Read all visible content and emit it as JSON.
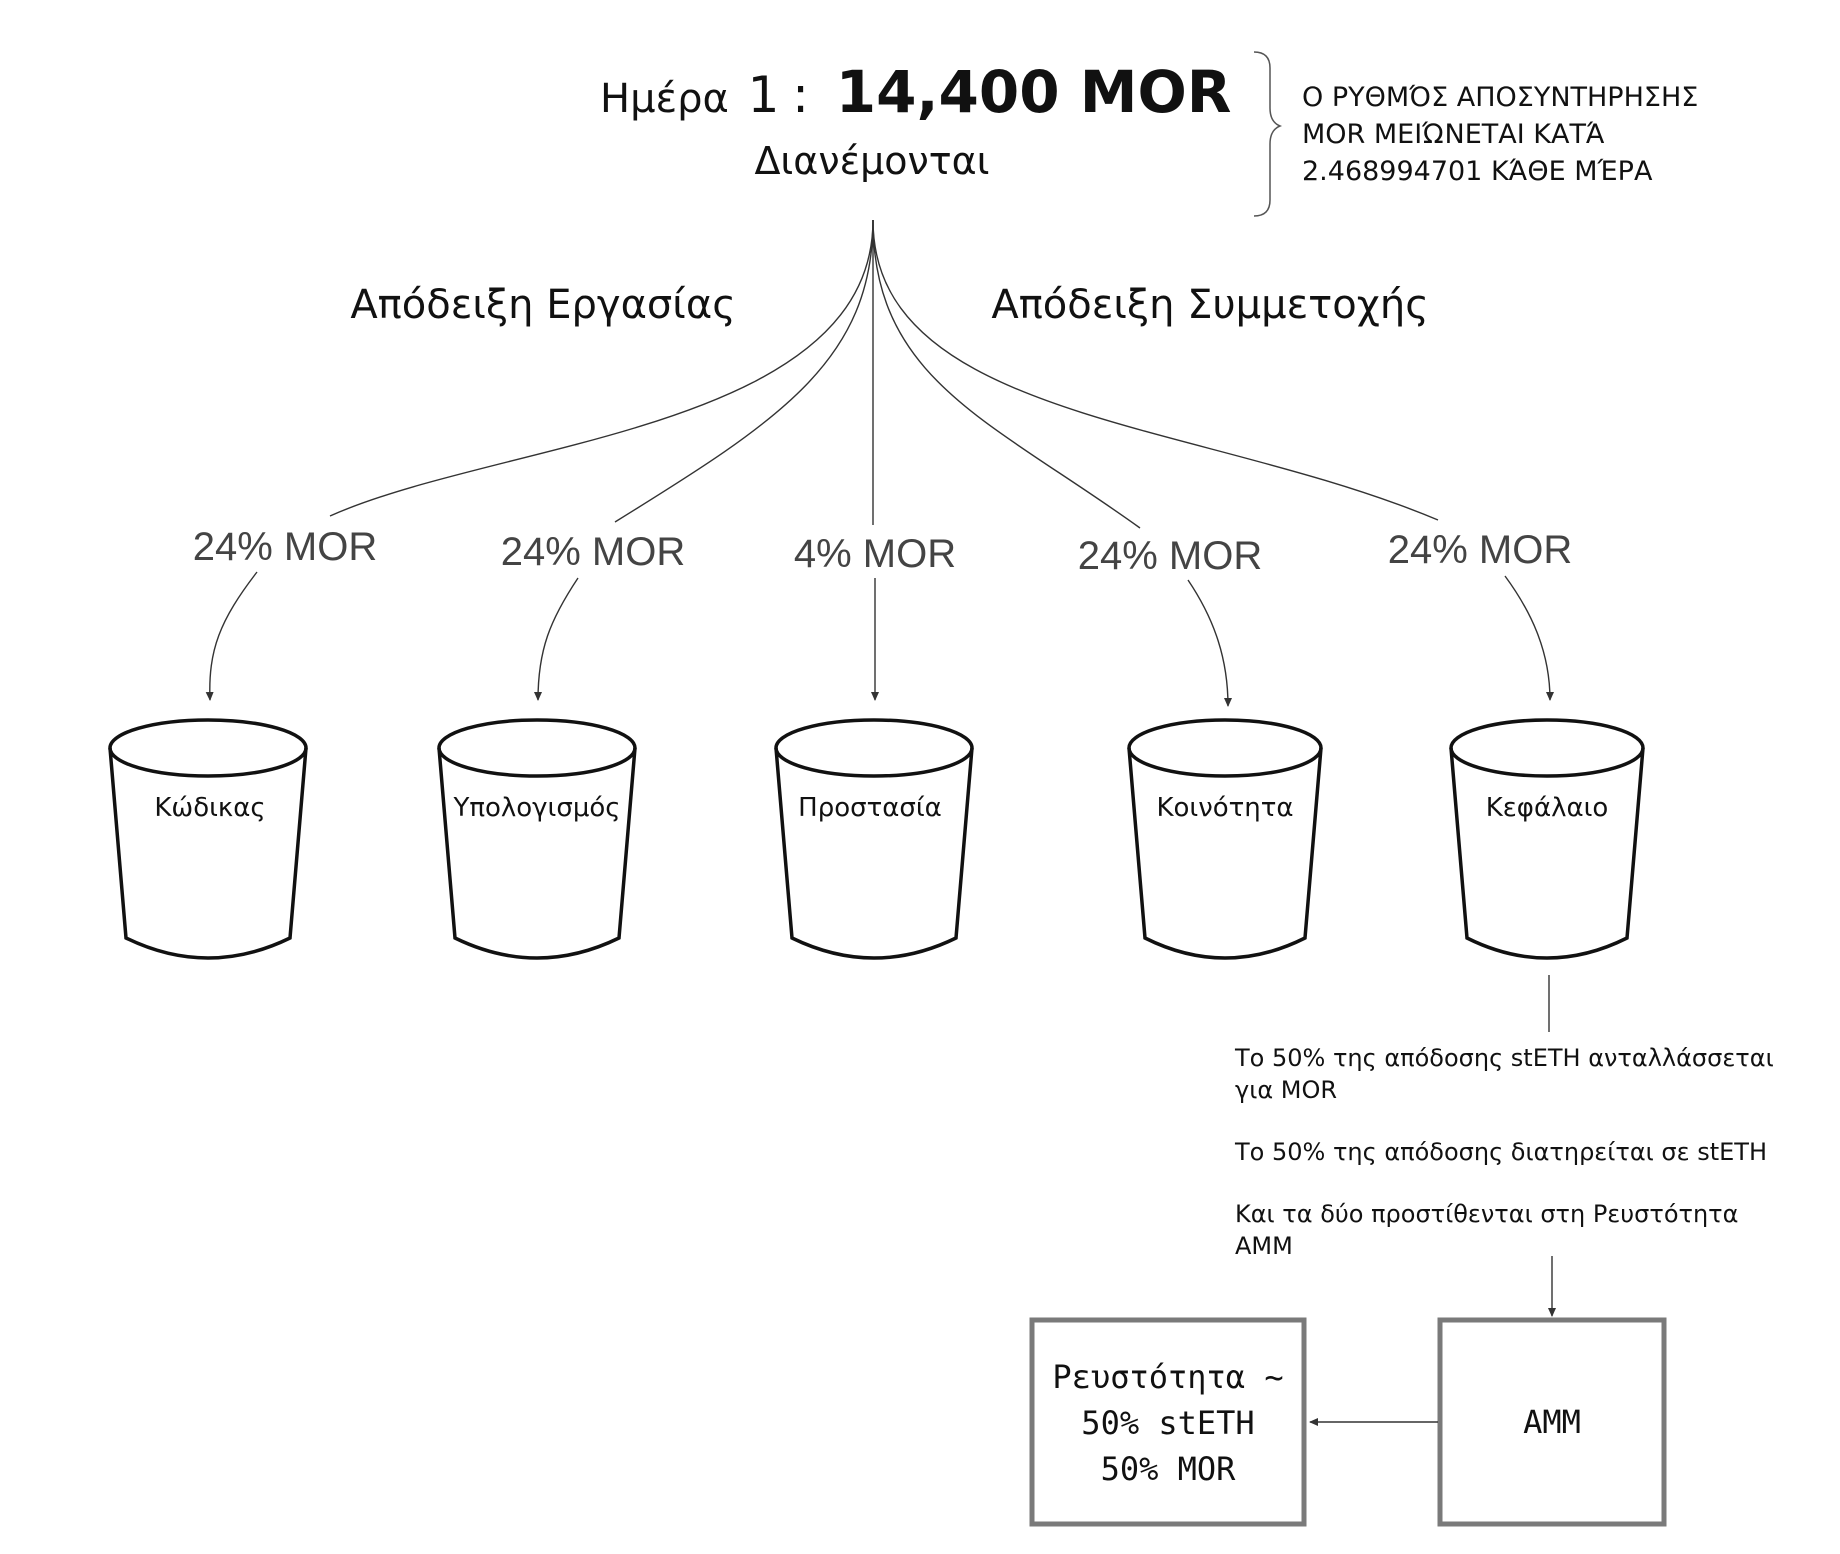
{
  "header": {
    "day_label": "Ημέρα",
    "day_number": "1",
    "colon": ":",
    "amount": "14,400 MOR",
    "subtitle": "Διανέμονται"
  },
  "note": {
    "line1": "Ο ΡΥΘΜΌΣ ΑΠΟΣΥΝΤΗΡΗΣΗΣ",
    "line2": "MOR ΜΕΙΏΝΕΤΑΙ ΚΑΤΆ",
    "line3": "2.468994701 ΚΆΘΕ ΜΈΡΑ"
  },
  "groups": {
    "work": "Απόδειξη Εργασίας",
    "stake": "Απόδειξη Συμμετοχής"
  },
  "buckets": [
    {
      "share": "24% MOR",
      "name": "Κώδικας"
    },
    {
      "share": "24% MOR",
      "name": "Υπολογισμός"
    },
    {
      "share": "4% MOR",
      "name": "Προστασία"
    },
    {
      "share": "24% MOR",
      "name": "Κοινότητα"
    },
    {
      "share": "24% MOR",
      "name": "Κεφάλαιο"
    }
  ],
  "yield_notes": {
    "swap_line1": "Το 50% της απόδοσης stETH ανταλλάσσεται",
    "swap_line2": "για MOR",
    "kept": "Το 50% της απόδοσης διατηρείται σε stETH",
    "added_line1": "Και τα δύο προστίθενται στη Ρευστότητα",
    "added_line2": "AMM"
  },
  "boxes": {
    "amm": "AMM",
    "liquidity_line1": "Ρευστότητα ~",
    "liquidity_line2": "50% stETH",
    "liquidity_line3": "50% MOR"
  },
  "colors": {
    "line": "#333333",
    "bucket_stroke": "#111111",
    "box_stroke": "#7a7a7a",
    "text_dark": "#111111",
    "text_mid": "#444444"
  }
}
